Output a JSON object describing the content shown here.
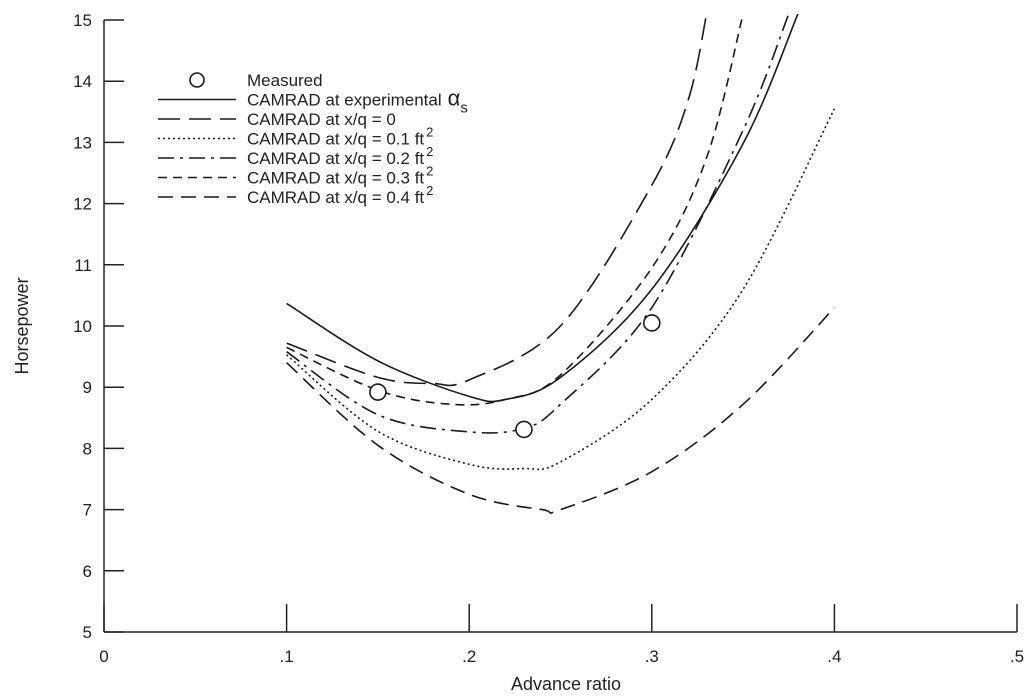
{
  "chart_data": {
    "type": "line",
    "title": "",
    "xlabel": "Advance ratio",
    "ylabel": "Horsepower",
    "xlim": [
      0,
      0.5
    ],
    "ylim": [
      5,
      15
    ],
    "grid": false,
    "legend_position": "top-left",
    "x_ticks": [
      0,
      0.1,
      0.2,
      0.3,
      0.4,
      0.5
    ],
    "x_tick_labels": [
      "0",
      ".1",
      ".2",
      ".3",
      ".4",
      ".5"
    ],
    "y_ticks": [
      5,
      6,
      7,
      8,
      9,
      10,
      11,
      12,
      13,
      14,
      15
    ],
    "y_tick_labels": [
      "5",
      "6",
      "7",
      "8",
      "9",
      "10",
      "11",
      "12",
      "13",
      "14",
      "15"
    ],
    "measured": {
      "name": "Measured",
      "points": [
        {
          "x": 0.15,
          "y": 8.92
        },
        {
          "x": 0.23,
          "y": 8.31
        },
        {
          "x": 0.3,
          "y": 10.05
        }
      ]
    },
    "series": [
      {
        "name": "CAMRAD at experimental",
        "name_symbol": "α",
        "name_subscript": "s",
        "style": "solid",
        "points": [
          [
            0.1,
            10.37
          ],
          [
            0.15,
            9.43
          ],
          [
            0.2,
            8.85
          ],
          [
            0.22,
            8.8
          ],
          [
            0.25,
            9.16
          ],
          [
            0.3,
            10.6
          ],
          [
            0.35,
            12.98
          ],
          [
            0.38,
            15.1
          ]
        ]
      },
      {
        "name": "CAMRAD at x/q = 0",
        "name_sup": "",
        "style": "long-dash",
        "points": [
          [
            0.1,
            9.72
          ],
          [
            0.15,
            9.16
          ],
          [
            0.18,
            9.06
          ],
          [
            0.2,
            9.12
          ],
          [
            0.25,
            10.0
          ],
          [
            0.3,
            12.3
          ],
          [
            0.32,
            13.7
          ],
          [
            0.33,
            15.1
          ]
        ]
      },
      {
        "name": "CAMRAD at x/q = 0.1 ft",
        "name_sup": "2",
        "style": "dotted",
        "points": [
          [
            0.1,
            9.53
          ],
          [
            0.15,
            8.28
          ],
          [
            0.2,
            7.74
          ],
          [
            0.23,
            7.67
          ],
          [
            0.25,
            7.78
          ],
          [
            0.3,
            8.8
          ],
          [
            0.35,
            10.6
          ],
          [
            0.4,
            13.55
          ]
        ]
      },
      {
        "name": "CAMRAD at x/q = 0.2 ft",
        "name_sup": "2",
        "style": "dash-dot",
        "points": [
          [
            0.1,
            9.58
          ],
          [
            0.15,
            8.55
          ],
          [
            0.2,
            8.27
          ],
          [
            0.23,
            8.33
          ],
          [
            0.25,
            8.72
          ],
          [
            0.3,
            10.3
          ],
          [
            0.35,
            13.2
          ],
          [
            0.375,
            15.1
          ]
        ]
      },
      {
        "name": "CAMRAD at x/q = 0.3 ft",
        "name_sup": "2",
        "style": "short-dash",
        "points": [
          [
            0.1,
            9.65
          ],
          [
            0.15,
            8.95
          ],
          [
            0.19,
            8.72
          ],
          [
            0.22,
            8.8
          ],
          [
            0.25,
            9.2
          ],
          [
            0.3,
            10.95
          ],
          [
            0.33,
            12.75
          ],
          [
            0.35,
            15.1
          ]
        ]
      },
      {
        "name": "CAMRAD at x/q = 0.4 ft",
        "name_sup": "2",
        "style": "dash",
        "points": [
          [
            0.1,
            9.4
          ],
          [
            0.15,
            8.05
          ],
          [
            0.2,
            7.25
          ],
          [
            0.24,
            7.0
          ],
          [
            0.25,
            7.0
          ],
          [
            0.3,
            7.62
          ],
          [
            0.35,
            8.72
          ],
          [
            0.4,
            10.3
          ]
        ]
      }
    ]
  }
}
